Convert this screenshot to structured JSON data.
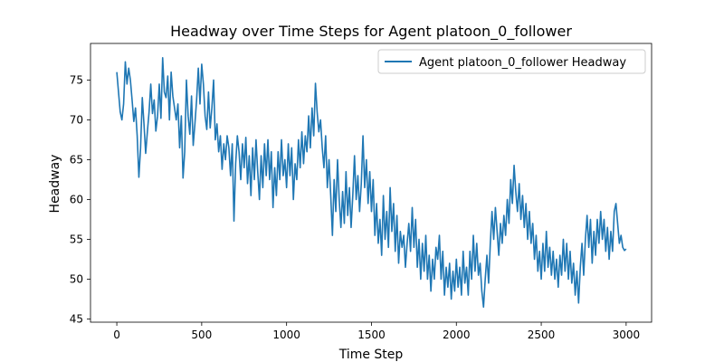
{
  "chart_data": {
    "type": "line",
    "title": "Headway over Time Steps for Agent platoon_0_follower",
    "xlabel": "Time Step",
    "ylabel": "Headway",
    "xlim": [
      -155,
      3150
    ],
    "ylim": [
      44.6,
      79.6
    ],
    "x_ticks": [
      0,
      500,
      1000,
      1500,
      2000,
      2500,
      3000
    ],
    "y_ticks": [
      45,
      50,
      55,
      60,
      65,
      70,
      75
    ],
    "grid": false,
    "legend_position": "upper right",
    "series": [
      {
        "name": "Agent platoon_0_follower Headway",
        "color": "#1f77b4",
        "points": [
          [
            0,
            76.0
          ],
          [
            10,
            73.5
          ],
          [
            20,
            71.0
          ],
          [
            30,
            70.0
          ],
          [
            40,
            72.0
          ],
          [
            50,
            77.3
          ],
          [
            60,
            74.5
          ],
          [
            70,
            76.5
          ],
          [
            80,
            75.0
          ],
          [
            90,
            72.5
          ],
          [
            100,
            69.8
          ],
          [
            110,
            71.5
          ],
          [
            120,
            68.0
          ],
          [
            130,
            62.8
          ],
          [
            140,
            66.5
          ],
          [
            150,
            72.8
          ],
          [
            160,
            69.5
          ],
          [
            170,
            65.8
          ],
          [
            180,
            68.5
          ],
          [
            190,
            71.0
          ],
          [
            200,
            74.5
          ],
          [
            210,
            70.8
          ],
          [
            220,
            72.5
          ],
          [
            230,
            68.6
          ],
          [
            240,
            70.5
          ],
          [
            250,
            74.5
          ],
          [
            260,
            70.2
          ],
          [
            270,
            77.8
          ],
          [
            280,
            73.5
          ],
          [
            290,
            72.8
          ],
          [
            300,
            75.5
          ],
          [
            310,
            70.0
          ],
          [
            320,
            76.0
          ],
          [
            330,
            73.0
          ],
          [
            340,
            71.5
          ],
          [
            350,
            70.0
          ],
          [
            360,
            72.0
          ],
          [
            370,
            66.5
          ],
          [
            380,
            70.5
          ],
          [
            390,
            62.7
          ],
          [
            400,
            66.0
          ],
          [
            410,
            75.0
          ],
          [
            420,
            70.5
          ],
          [
            430,
            68.2
          ],
          [
            440,
            73.0
          ],
          [
            450,
            66.8
          ],
          [
            460,
            69.5
          ],
          [
            470,
            72.5
          ],
          [
            480,
            76.5
          ],
          [
            490,
            72.0
          ],
          [
            500,
            77.0
          ],
          [
            510,
            74.5
          ],
          [
            520,
            70.5
          ],
          [
            530,
            68.8
          ],
          [
            540,
            73.5
          ],
          [
            550,
            69.0
          ],
          [
            560,
            71.5
          ],
          [
            570,
            75.0
          ],
          [
            580,
            67.5
          ],
          [
            590,
            69.5
          ],
          [
            600,
            66.0
          ],
          [
            610,
            68.0
          ],
          [
            620,
            63.8
          ],
          [
            630,
            67.0
          ],
          [
            640,
            65.0
          ],
          [
            650,
            68.0
          ],
          [
            660,
            66.5
          ],
          [
            670,
            63.0
          ],
          [
            680,
            67.0
          ],
          [
            690,
            57.3
          ],
          [
            700,
            64.5
          ],
          [
            710,
            68.0
          ],
          [
            720,
            66.0
          ],
          [
            730,
            62.5
          ],
          [
            740,
            67.0
          ],
          [
            750,
            64.0
          ],
          [
            760,
            67.8
          ],
          [
            770,
            62.0
          ],
          [
            780,
            65.5
          ],
          [
            790,
            60.5
          ],
          [
            800,
            66.5
          ],
          [
            810,
            62.5
          ],
          [
            820,
            67.5
          ],
          [
            830,
            63.5
          ],
          [
            840,
            60.0
          ],
          [
            850,
            65.5
          ],
          [
            860,
            61.5
          ],
          [
            870,
            67.0
          ],
          [
            880,
            63.0
          ],
          [
            890,
            67.5
          ],
          [
            900,
            62.5
          ],
          [
            910,
            66.0
          ],
          [
            920,
            59.0
          ],
          [
            930,
            64.0
          ],
          [
            940,
            60.5
          ],
          [
            950,
            66.0
          ],
          [
            960,
            62.5
          ],
          [
            970,
            67.5
          ],
          [
            980,
            63.0
          ],
          [
            990,
            65.0
          ],
          [
            1000,
            61.5
          ],
          [
            1010,
            67.0
          ],
          [
            1020,
            63.0
          ],
          [
            1030,
            66.5
          ],
          [
            1040,
            60.0
          ],
          [
            1050,
            64.5
          ],
          [
            1060,
            62.5
          ],
          [
            1070,
            67.5
          ],
          [
            1080,
            64.0
          ],
          [
            1090,
            68.5
          ],
          [
            1100,
            64.5
          ],
          [
            1110,
            68.0
          ],
          [
            1120,
            66.0
          ],
          [
            1130,
            70.5
          ],
          [
            1140,
            66.5
          ],
          [
            1150,
            71.5
          ],
          [
            1160,
            68.0
          ],
          [
            1170,
            74.6
          ],
          [
            1180,
            71.0
          ],
          [
            1190,
            68.5
          ],
          [
            1200,
            70.0
          ],
          [
            1210,
            66.5
          ],
          [
            1220,
            64.0
          ],
          [
            1230,
            68.0
          ],
          [
            1240,
            61.5
          ],
          [
            1250,
            65.0
          ],
          [
            1260,
            60.5
          ],
          [
            1270,
            55.5
          ],
          [
            1280,
            62.5
          ],
          [
            1290,
            58.5
          ],
          [
            1300,
            65.0
          ],
          [
            1310,
            60.0
          ],
          [
            1320,
            56.5
          ],
          [
            1330,
            61.0
          ],
          [
            1340,
            57.0
          ],
          [
            1350,
            63.5
          ],
          [
            1360,
            58.0
          ],
          [
            1370,
            61.5
          ],
          [
            1380,
            56.5
          ],
          [
            1390,
            60.5
          ],
          [
            1400,
            65.5
          ],
          [
            1410,
            60.0
          ],
          [
            1420,
            63.0
          ],
          [
            1430,
            58.5
          ],
          [
            1440,
            62.0
          ],
          [
            1450,
            68.0
          ],
          [
            1460,
            61.5
          ],
          [
            1470,
            65.0
          ],
          [
            1480,
            59.5
          ],
          [
            1490,
            63.5
          ],
          [
            1500,
            58.5
          ],
          [
            1510,
            62.5
          ],
          [
            1520,
            55.5
          ],
          [
            1530,
            59.5
          ],
          [
            1540,
            54.5
          ],
          [
            1550,
            57.5
          ],
          [
            1560,
            53.0
          ],
          [
            1570,
            60.5
          ],
          [
            1580,
            55.0
          ],
          [
            1590,
            58.5
          ],
          [
            1600,
            54.0
          ],
          [
            1610,
            61.5
          ],
          [
            1620,
            56.0
          ],
          [
            1630,
            59.5
          ],
          [
            1640,
            53.5
          ],
          [
            1650,
            58.0
          ],
          [
            1660,
            52.0
          ],
          [
            1670,
            56.0
          ],
          [
            1680,
            54.0
          ],
          [
            1690,
            55.5
          ],
          [
            1700,
            51.5
          ],
          [
            1710,
            54.5
          ],
          [
            1720,
            57.0
          ],
          [
            1730,
            53.5
          ],
          [
            1740,
            59.0
          ],
          [
            1750,
            54.0
          ],
          [
            1760,
            57.5
          ],
          [
            1770,
            51.5
          ],
          [
            1780,
            55.0
          ],
          [
            1790,
            50.0
          ],
          [
            1800,
            54.5
          ],
          [
            1810,
            51.0
          ],
          [
            1820,
            55.5
          ],
          [
            1830,
            50.0
          ],
          [
            1840,
            53.0
          ],
          [
            1850,
            48.5
          ],
          [
            1860,
            52.5
          ],
          [
            1870,
            50.0
          ],
          [
            1880,
            54.0
          ],
          [
            1890,
            52.5
          ],
          [
            1900,
            55.5
          ],
          [
            1910,
            50.0
          ],
          [
            1920,
            53.5
          ],
          [
            1930,
            48.0
          ],
          [
            1940,
            51.5
          ],
          [
            1950,
            49.0
          ],
          [
            1960,
            52.0
          ],
          [
            1970,
            47.5
          ],
          [
            1980,
            51.0
          ],
          [
            1990,
            48.5
          ],
          [
            2000,
            52.5
          ],
          [
            2010,
            49.0
          ],
          [
            2020,
            51.5
          ],
          [
            2030,
            48.0
          ],
          [
            2040,
            53.5
          ],
          [
            2050,
            49.5
          ],
          [
            2060,
            51.5
          ],
          [
            2070,
            48.0
          ],
          [
            2080,
            53.5
          ],
          [
            2090,
            50.0
          ],
          [
            2100,
            55.5
          ],
          [
            2110,
            51.0
          ],
          [
            2120,
            54.5
          ],
          [
            2130,
            50.5
          ],
          [
            2140,
            52.0
          ],
          [
            2150,
            48.5
          ],
          [
            2160,
            46.5
          ],
          [
            2170,
            50.0
          ],
          [
            2180,
            53.0
          ],
          [
            2190,
            49.5
          ],
          [
            2200,
            54.5
          ],
          [
            2210,
            58.5
          ],
          [
            2220,
            55.0
          ],
          [
            2230,
            59.0
          ],
          [
            2240,
            56.0
          ],
          [
            2250,
            53.0
          ],
          [
            2260,
            57.0
          ],
          [
            2270,
            54.5
          ],
          [
            2280,
            58.0
          ],
          [
            2290,
            55.5
          ],
          [
            2300,
            60.0
          ],
          [
            2310,
            57.0
          ],
          [
            2320,
            62.5
          ],
          [
            2330,
            59.5
          ],
          [
            2340,
            64.3
          ],
          [
            2350,
            61.0
          ],
          [
            2360,
            58.5
          ],
          [
            2370,
            62.0
          ],
          [
            2380,
            57.5
          ],
          [
            2390,
            60.5
          ],
          [
            2400,
            56.5
          ],
          [
            2410,
            59.5
          ],
          [
            2420,
            55.0
          ],
          [
            2430,
            58.5
          ],
          [
            2440,
            54.5
          ],
          [
            2450,
            57.0
          ],
          [
            2460,
            52.5
          ],
          [
            2470,
            55.5
          ],
          [
            2480,
            51.0
          ],
          [
            2490,
            53.5
          ],
          [
            2500,
            50.0
          ],
          [
            2510,
            54.5
          ],
          [
            2520,
            51.0
          ],
          [
            2530,
            56.0
          ],
          [
            2540,
            51.5
          ],
          [
            2550,
            54.0
          ],
          [
            2560,
            50.5
          ],
          [
            2570,
            53.5
          ],
          [
            2580,
            50.0
          ],
          [
            2590,
            52.5
          ],
          [
            2600,
            49.0
          ],
          [
            2610,
            53.0
          ],
          [
            2620,
            50.5
          ],
          [
            2630,
            55.0
          ],
          [
            2640,
            51.0
          ],
          [
            2650,
            54.5
          ],
          [
            2660,
            50.0
          ],
          [
            2670,
            53.5
          ],
          [
            2680,
            49.5
          ],
          [
            2690,
            52.0
          ],
          [
            2700,
            48.0
          ],
          [
            2710,
            51.0
          ],
          [
            2720,
            47.0
          ],
          [
            2730,
            51.5
          ],
          [
            2740,
            54.5
          ],
          [
            2750,
            50.5
          ],
          [
            2760,
            55.0
          ],
          [
            2770,
            58.0
          ],
          [
            2780,
            54.0
          ],
          [
            2790,
            57.5
          ],
          [
            2800,
            52.0
          ],
          [
            2810,
            56.0
          ],
          [
            2820,
            53.0
          ],
          [
            2830,
            57.5
          ],
          [
            2840,
            54.5
          ],
          [
            2850,
            58.5
          ],
          [
            2860,
            55.0
          ],
          [
            2870,
            57.5
          ],
          [
            2880,
            53.5
          ],
          [
            2890,
            56.5
          ],
          [
            2900,
            52.5
          ],
          [
            2910,
            56.0
          ],
          [
            2920,
            53.5
          ],
          [
            2930,
            58.5
          ],
          [
            2940,
            59.5
          ],
          [
            2950,
            57.0
          ],
          [
            2960,
            54.5
          ],
          [
            2970,
            55.5
          ],
          [
            2980,
            54.0
          ],
          [
            2990,
            53.6
          ],
          [
            3000,
            53.8
          ]
        ]
      }
    ]
  }
}
